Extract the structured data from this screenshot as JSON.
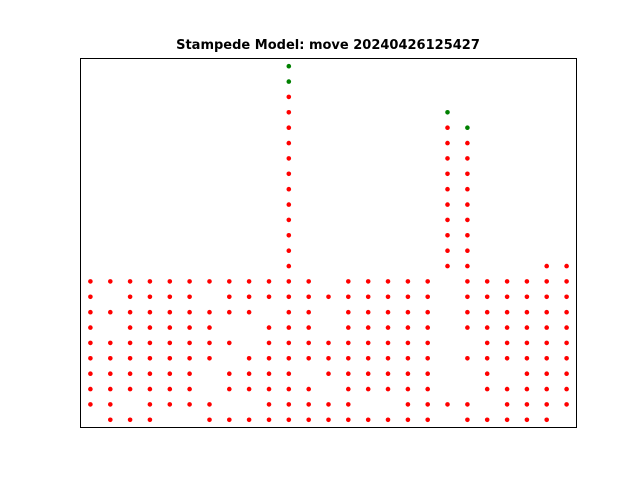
{
  "chart_data": {
    "type": "scatter",
    "title": "Stampede Model: move 20240426125427",
    "xlabel": "",
    "ylabel": "",
    "xlim": [
      -0.5,
      24.5
    ],
    "ylim": [
      0.5,
      24.5
    ],
    "grid": false,
    "axis_ticks": false,
    "colors": {
      "red": "#ff0000",
      "green": "#008000"
    },
    "series": [
      {
        "color": "red",
        "columns": [
          {
            "x": 0,
            "y": [
              2,
              3,
              4,
              5,
              6,
              7,
              8,
              9,
              10
            ]
          },
          {
            "x": 1,
            "y": [
              1,
              2,
              3,
              4,
              5,
              6,
              8,
              10
            ]
          },
          {
            "x": 2,
            "y": [
              1,
              3,
              4,
              5,
              6,
              7,
              8,
              9,
              10
            ]
          },
          {
            "x": 3,
            "y": [
              1,
              2,
              3,
              4,
              5,
              6,
              7,
              8,
              9,
              10
            ]
          },
          {
            "x": 4,
            "y": [
              2,
              3,
              4,
              5,
              6,
              7,
              8,
              9,
              10
            ]
          },
          {
            "x": 5,
            "y": [
              2,
              3,
              4,
              5,
              6,
              7,
              8,
              9,
              10
            ]
          },
          {
            "x": 6,
            "y": [
              1,
              2,
              5,
              6,
              7,
              8,
              10
            ]
          },
          {
            "x": 7,
            "y": [
              1,
              3,
              4,
              6,
              8,
              9,
              10
            ]
          },
          {
            "x": 8,
            "y": [
              1,
              3,
              4,
              5,
              8,
              9,
              10
            ]
          },
          {
            "x": 9,
            "y": [
              1,
              2,
              3,
              4,
              5,
              6,
              7,
              9,
              10
            ]
          },
          {
            "x": 10,
            "y": [
              1,
              2,
              3,
              4,
              5,
              6,
              7,
              8,
              9,
              10,
              11,
              12,
              13,
              14,
              15,
              16,
              17,
              18,
              19,
              20,
              21,
              22
            ]
          },
          {
            "x": 11,
            "y": [
              1,
              2,
              3,
              5,
              6,
              7,
              8,
              9,
              10
            ]
          },
          {
            "x": 12,
            "y": [
              1,
              2,
              4,
              5,
              6,
              9
            ]
          },
          {
            "x": 13,
            "y": [
              1,
              2,
              3,
              4,
              5,
              6,
              7,
              8,
              9,
              10
            ]
          },
          {
            "x": 14,
            "y": [
              1,
              3,
              4,
              5,
              6,
              7,
              8,
              9,
              10
            ]
          },
          {
            "x": 15,
            "y": [
              1,
              3,
              4,
              5,
              6,
              7,
              8,
              9,
              10
            ]
          },
          {
            "x": 16,
            "y": [
              1,
              2,
              3,
              4,
              5,
              6,
              7,
              8,
              9,
              10
            ]
          },
          {
            "x": 17,
            "y": [
              1,
              2,
              3,
              4,
              5,
              6,
              7,
              8,
              9,
              10
            ]
          },
          {
            "x": 18,
            "y": [
              2,
              11,
              12,
              13,
              14,
              15,
              16,
              17,
              18,
              19,
              20
            ]
          },
          {
            "x": 19,
            "y": [
              1,
              2,
              5,
              7,
              8,
              9,
              10,
              11,
              12,
              13,
              14,
              15,
              16,
              17,
              18,
              19
            ]
          },
          {
            "x": 20,
            "y": [
              1,
              3,
              4,
              5,
              6,
              7,
              8,
              9,
              10
            ]
          },
          {
            "x": 21,
            "y": [
              1,
              2,
              3,
              5,
              6,
              7,
              8,
              9,
              10
            ]
          },
          {
            "x": 22,
            "y": [
              1,
              2,
              3,
              4,
              5,
              6,
              7,
              8,
              9,
              10
            ]
          },
          {
            "x": 23,
            "y": [
              1,
              2,
              3,
              4,
              5,
              6,
              7,
              8,
              9,
              10,
              11
            ]
          },
          {
            "x": 24,
            "y": [
              2,
              3,
              4,
              5,
              6,
              7,
              8,
              9,
              10,
              11
            ]
          }
        ]
      },
      {
        "color": "green",
        "columns": [
          {
            "x": 10,
            "y": [
              23,
              24
            ]
          },
          {
            "x": 18,
            "y": [
              21
            ]
          },
          {
            "x": 19,
            "y": [
              20
            ]
          }
        ]
      }
    ]
  }
}
